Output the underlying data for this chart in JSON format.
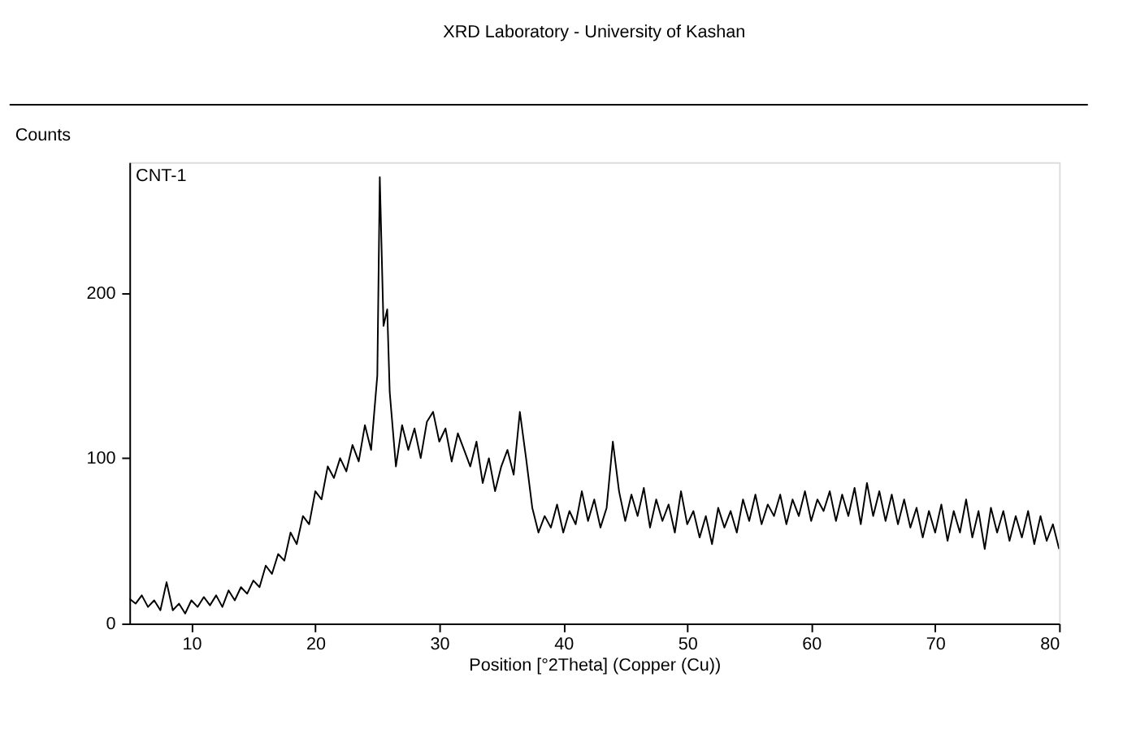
{
  "chart_data": {
    "type": "line",
    "title": "XRD Laboratory - University of Kashan",
    "xlabel": "Position [°2Theta] (Copper (Cu))",
    "ylabel": "Counts",
    "annotations": [
      "CNT-1"
    ],
    "x": [
      5,
      5.5,
      6,
      6.5,
      7,
      7.5,
      8,
      8.5,
      9,
      9.5,
      10,
      10.5,
      11,
      11.5,
      12,
      12.5,
      13,
      13.5,
      14,
      14.5,
      15,
      15.5,
      16,
      16.5,
      17,
      17.5,
      18,
      18.5,
      19,
      19.5,
      20,
      20.5,
      21,
      21.5,
      22,
      22.5,
      23,
      23.5,
      24,
      24.5,
      25,
      25.2,
      25.5,
      25.8,
      26,
      26.5,
      27,
      27.5,
      28,
      28.5,
      29,
      29.5,
      30,
      30.5,
      31,
      31.5,
      32,
      32.5,
      33,
      33.5,
      34,
      34.5,
      35,
      35.5,
      36,
      36.5,
      37,
      37.5,
      38,
      38.5,
      39,
      39.5,
      40,
      40.5,
      41,
      41.5,
      42,
      42.5,
      43,
      43.5,
      44,
      44.5,
      45,
      45.5,
      46,
      46.5,
      47,
      47.5,
      48,
      48.5,
      49,
      49.5,
      50,
      50.5,
      51,
      51.5,
      52,
      52.5,
      53,
      53.5,
      54,
      54.5,
      55,
      55.5,
      56,
      56.5,
      57,
      57.5,
      58,
      58.5,
      59,
      59.5,
      60,
      60.5,
      61,
      61.5,
      62,
      62.5,
      63,
      63.5,
      64,
      64.5,
      65,
      65.5,
      66,
      66.5,
      67,
      67.5,
      68,
      68.5,
      69,
      69.5,
      70,
      70.5,
      71,
      71.5,
      72,
      72.5,
      73,
      73.5,
      74,
      74.5,
      75,
      75.5,
      76,
      76.5,
      77,
      77.5,
      78,
      78.5,
      79,
      79.5,
      80
    ],
    "series": [
      {
        "color": "#000000",
        "values": [
          15,
          12,
          17,
          10,
          14,
          8,
          25,
          8,
          12,
          6,
          14,
          10,
          16,
          11,
          17,
          10,
          20,
          14,
          22,
          18,
          26,
          22,
          35,
          30,
          42,
          38,
          55,
          48,
          65,
          60,
          80,
          75,
          95,
          88,
          100,
          92,
          108,
          98,
          120,
          105,
          150,
          270,
          180,
          190,
          140,
          95,
          120,
          105,
          118,
          100,
          122,
          128,
          110,
          118,
          98,
          115,
          105,
          95,
          110,
          85,
          100,
          80,
          95,
          105,
          90,
          128,
          100,
          70,
          55,
          65,
          58,
          72,
          55,
          68,
          60,
          80,
          62,
          75,
          58,
          70,
          110,
          80,
          62,
          78,
          65,
          82,
          58,
          75,
          62,
          72,
          55,
          80,
          60,
          68,
          52,
          65,
          48,
          70,
          58,
          68,
          55,
          75,
          62,
          78,
          60,
          72,
          65,
          78,
          60,
          75,
          65,
          80,
          62,
          75,
          68,
          80,
          62,
          78,
          65,
          82,
          60,
          85,
          65,
          80,
          62,
          78,
          60,
          75,
          58,
          70,
          52,
          68,
          55,
          72,
          50,
          68,
          55,
          75,
          52,
          68,
          45,
          70,
          55,
          68,
          50,
          65,
          52,
          68,
          48,
          65,
          50,
          60,
          45
        ]
      }
    ],
    "xlim": [
      5,
      80
    ],
    "xticks": [
      10,
      20,
      30,
      40,
      50,
      60,
      70,
      80
    ],
    "ylim": [
      0,
      279
    ],
    "yticks": [
      0,
      100,
      200
    ],
    "grid": false,
    "marker": "none",
    "line_style": "solid"
  }
}
